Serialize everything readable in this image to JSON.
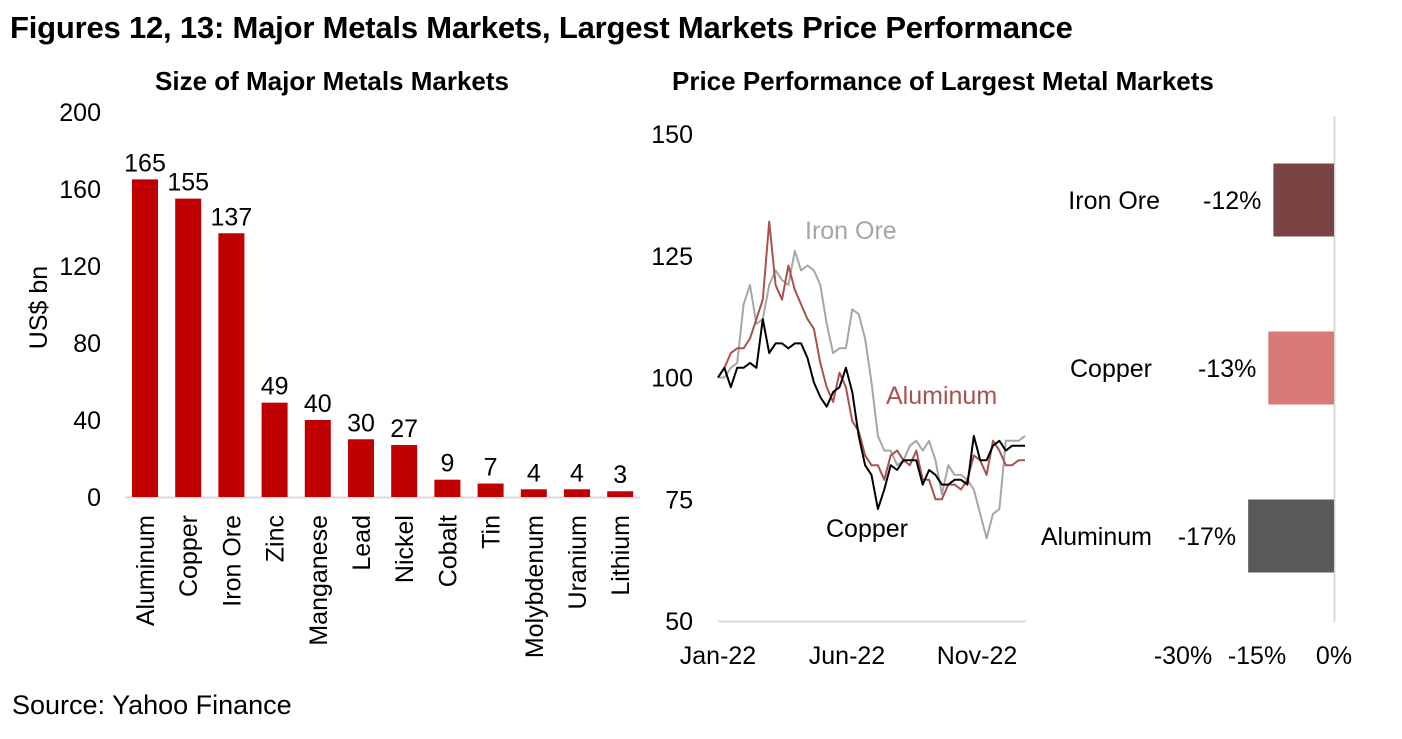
{
  "title": "Figures 12, 13: Major Metals Markets, Largest Markets Price Performance",
  "source": "Source: Yahoo Finance",
  "chart_data": [
    {
      "type": "bar",
      "title": "Size of Major Metals Markets",
      "xlabel": "",
      "ylabel": "US$ bn",
      "ylim": [
        0,
        200
      ],
      "yticks": [
        0,
        40,
        80,
        120,
        160,
        200
      ],
      "grid": false,
      "color": "#C00000",
      "categories": [
        "Aluminum",
        "Copper",
        "Iron Ore",
        "Zinc",
        "Manganese",
        "Lead",
        "Nickel",
        "Cobalt",
        "Tin",
        "Molybdenum",
        "Uranium",
        "Lithium"
      ],
      "values": [
        165,
        155,
        137,
        49,
        40,
        30,
        27,
        9,
        7,
        4,
        4,
        3
      ],
      "data_labels": [
        "165",
        "155",
        "137",
        "49",
        "40",
        "30",
        "27",
        "9",
        "7",
        "4",
        "4",
        "3"
      ]
    },
    {
      "type": "line",
      "title": "Price Performance of Largest Metal Markets",
      "xlabel": "",
      "ylabel": "",
      "ylim": [
        50,
        150
      ],
      "yticks": [
        50,
        75,
        100,
        125,
        150
      ],
      "xticks": [
        "Jan-22",
        "Jun-22",
        "Nov-22"
      ],
      "x_range": [
        "Jan-22",
        "Dec-22"
      ],
      "grid": false,
      "series": [
        {
          "name": "Iron Ore",
          "color": "#A6A6A6",
          "values": [
            100,
            100,
            102,
            103,
            115,
            119,
            111,
            112,
            119,
            122,
            120,
            119,
            126,
            122,
            123,
            122,
            119,
            111,
            105,
            106,
            106,
            114,
            113,
            108,
            99,
            88,
            85,
            85,
            82,
            83,
            86,
            87,
            85,
            87,
            83,
            76,
            82,
            80,
            80,
            79,
            77,
            72,
            67,
            72,
            73,
            87,
            87,
            87,
            88
          ]
        },
        {
          "name": "Aluminum",
          "color": "#A9514F",
          "values": [
            100,
            102,
            105,
            106,
            106,
            108,
            112,
            116,
            132,
            119,
            116,
            123,
            118,
            115,
            112,
            110,
            103,
            98,
            95,
            101,
            98,
            91,
            89,
            84,
            82,
            82,
            79,
            84,
            85,
            83,
            82,
            85,
            79,
            79,
            75,
            75,
            78,
            78,
            77,
            79,
            84,
            83,
            80,
            87,
            85,
            82,
            82,
            83,
            83
          ]
        },
        {
          "name": "Copper",
          "color": "#000000",
          "values": [
            100,
            102,
            98,
            102,
            102,
            103,
            102,
            112,
            105,
            107,
            107,
            106,
            107,
            107,
            104,
            99,
            96,
            94,
            97,
            98,
            102,
            97,
            88,
            82,
            80,
            73,
            77,
            82,
            81,
            83,
            83,
            83,
            78,
            81,
            80,
            78,
            78,
            79,
            79,
            78,
            88,
            83,
            83,
            86,
            87,
            85,
            86,
            86,
            86
          ]
        }
      ],
      "annotations": [
        {
          "text": "Iron Ore",
          "series": "Iron Ore"
        },
        {
          "text": "Aluminum",
          "series": "Aluminum"
        },
        {
          "text": "Copper",
          "series": "Copper"
        }
      ]
    },
    {
      "type": "bar",
      "orientation": "horizontal",
      "title": "",
      "xlabel": "",
      "ylabel": "",
      "xlim": [
        -30,
        0
      ],
      "xticks": [
        "-30%",
        "-15%",
        "0%"
      ],
      "grid": false,
      "categories": [
        "Iron Ore",
        "Copper",
        "Aluminum"
      ],
      "values": [
        -12,
        -13,
        -17
      ],
      "data_labels": [
        "-12%",
        "-13%",
        "-17%"
      ],
      "colors": [
        "#7B4444",
        "#D77A78",
        "#595959"
      ]
    }
  ]
}
